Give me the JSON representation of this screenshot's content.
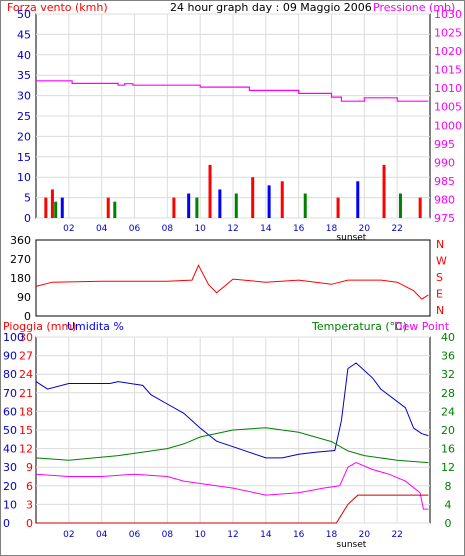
{
  "chart_data": [
    {
      "type": "bar+line",
      "title": "24 hour graph day : 09 Maggio 2006",
      "left_axis_label": "Forza vento (kmh)",
      "right_axis_label": "Pressione (mb)",
      "left_ticks": [
        0,
        5,
        10,
        15,
        20,
        25,
        30,
        35,
        40,
        45,
        50
      ],
      "right_ticks": [
        975,
        980,
        985,
        990,
        995,
        1000,
        1005,
        1010,
        1015,
        1020,
        1025,
        1030
      ],
      "x_ticks": [
        "02",
        "04",
        "06",
        "08",
        "10",
        "12",
        "14",
        "16",
        "18",
        "20",
        "22"
      ],
      "x_annotation": "sunset",
      "pressure": [
        [
          0,
          1012
        ],
        [
          2.2,
          1011.3
        ],
        [
          5,
          1010.8
        ],
        [
          5.4,
          1011.2
        ],
        [
          5.9,
          1010.8
        ],
        [
          10,
          1010.3
        ],
        [
          13,
          1009.4
        ],
        [
          16,
          1008.6
        ],
        [
          18,
          1007.6
        ],
        [
          18.6,
          1006.5
        ],
        [
          20,
          1007.4
        ],
        [
          22,
          1006.5
        ],
        [
          23.9,
          1006.5
        ]
      ],
      "wind_bars": [
        {
          "color": "#ff0000",
          "x": 0.6,
          "h": 5
        },
        {
          "color": "#ff0000",
          "x": 1.0,
          "h": 7
        },
        {
          "color": "#008000",
          "x": 1.2,
          "h": 4
        },
        {
          "color": "#0000ff",
          "x": 1.6,
          "h": 5
        },
        {
          "color": "#ff0000",
          "x": 4.4,
          "h": 5
        },
        {
          "color": "#008000",
          "x": 4.8,
          "h": 4
        },
        {
          "color": "#ff0000",
          "x": 8.4,
          "h": 5
        },
        {
          "color": "#0000ff",
          "x": 9.3,
          "h": 6
        },
        {
          "color": "#008000",
          "x": 9.8,
          "h": 5
        },
        {
          "color": "#ff0000",
          "x": 10.6,
          "h": 13
        },
        {
          "color": "#0000ff",
          "x": 11.2,
          "h": 7
        },
        {
          "color": "#008000",
          "x": 12.2,
          "h": 6
        },
        {
          "color": "#ff0000",
          "x": 13.2,
          "h": 10
        },
        {
          "color": "#0000ff",
          "x": 14.2,
          "h": 8
        },
        {
          "color": "#ff0000",
          "x": 15.0,
          "h": 9
        },
        {
          "color": "#008000",
          "x": 16.4,
          "h": 6
        },
        {
          "color": "#ff0000",
          "x": 18.4,
          "h": 5
        },
        {
          "color": "#0000ff",
          "x": 19.6,
          "h": 9
        },
        {
          "color": "#ff0000",
          "x": 21.2,
          "h": 13
        },
        {
          "color": "#008000",
          "x": 22.2,
          "h": 6
        },
        {
          "color": "#ff0000",
          "x": 23.4,
          "h": 5
        }
      ]
    },
    {
      "type": "line",
      "left_ticks": [
        0,
        90,
        180,
        270,
        360
      ],
      "right_labels": [
        "N",
        "W",
        "S",
        "E",
        "N"
      ],
      "wind_direction": [
        [
          0,
          140
        ],
        [
          1,
          160
        ],
        [
          4,
          165
        ],
        [
          8,
          165
        ],
        [
          9.5,
          170
        ],
        [
          9.9,
          240
        ],
        [
          10.5,
          150
        ],
        [
          11,
          110
        ],
        [
          12,
          175
        ],
        [
          14,
          160
        ],
        [
          16,
          170
        ],
        [
          18,
          150
        ],
        [
          19,
          170
        ],
        [
          21,
          170
        ],
        [
          22,
          160
        ],
        [
          23,
          120
        ],
        [
          23.5,
          80
        ],
        [
          23.9,
          100
        ]
      ]
    },
    {
      "type": "line",
      "left_axis_label_1": "Pioggia (mm)",
      "left_axis_label_2": "Umidita %",
      "right_axis_label_1": "Temperatura (°C)",
      "right_axis_label_2": "Dew Point",
      "rain_ticks": [
        0,
        3,
        6,
        9,
        12,
        15,
        18,
        21,
        24,
        27,
        30
      ],
      "humidity_ticks": [
        0,
        10,
        20,
        30,
        40,
        50,
        60,
        70,
        80,
        90,
        100
      ],
      "temp_ticks": [
        0,
        4,
        8,
        12,
        16,
        20,
        24,
        28,
        32,
        36,
        40
      ],
      "x_ticks": [
        "02",
        "04",
        "06",
        "08",
        "10",
        "12",
        "14",
        "16",
        "18",
        "20",
        "22"
      ],
      "x_annotation": "sunset",
      "humidity": [
        [
          0,
          76
        ],
        [
          0.7,
          72
        ],
        [
          2,
          75
        ],
        [
          4.5,
          75
        ],
        [
          5,
          76
        ],
        [
          6.5,
          74
        ],
        [
          7,
          69
        ],
        [
          8,
          64
        ],
        [
          9,
          59
        ],
        [
          10,
          51
        ],
        [
          11,
          44
        ],
        [
          12,
          41
        ],
        [
          13,
          38
        ],
        [
          14,
          35
        ],
        [
          15,
          35
        ],
        [
          16,
          37
        ],
        [
          17,
          38
        ],
        [
          18.2,
          39
        ],
        [
          18.6,
          55
        ],
        [
          19,
          83
        ],
        [
          19.5,
          86
        ],
        [
          20.5,
          78
        ],
        [
          21,
          72
        ],
        [
          22.5,
          62
        ],
        [
          23,
          51
        ],
        [
          23.5,
          48
        ],
        [
          23.9,
          47
        ]
      ],
      "temperature": [
        [
          0,
          14
        ],
        [
          2,
          13.5
        ],
        [
          5,
          14.5
        ],
        [
          8,
          16
        ],
        [
          9,
          17
        ],
        [
          10,
          18.5
        ],
        [
          12,
          20
        ],
        [
          14,
          20.5
        ],
        [
          16,
          19.5
        ],
        [
          18,
          17.5
        ],
        [
          19,
          15.5
        ],
        [
          20,
          14.5
        ],
        [
          22,
          13.5
        ],
        [
          23.9,
          13
        ]
      ],
      "dew_point": [
        [
          0,
          10.5
        ],
        [
          2,
          10
        ],
        [
          4,
          10
        ],
        [
          6,
          10.5
        ],
        [
          8,
          10
        ],
        [
          9,
          9
        ],
        [
          10,
          8.5
        ],
        [
          12,
          7.5
        ],
        [
          14,
          6
        ],
        [
          16,
          6.5
        ],
        [
          17.5,
          7.5
        ],
        [
          18.5,
          8
        ],
        [
          19,
          12
        ],
        [
          19.5,
          13
        ],
        [
          20.5,
          11.5
        ],
        [
          21.5,
          10.5
        ],
        [
          22.5,
          9
        ],
        [
          23.4,
          6.5
        ],
        [
          23.6,
          3
        ],
        [
          23.9,
          3
        ]
      ],
      "rain": [
        [
          0,
          0
        ],
        [
          18.3,
          0
        ],
        [
          19,
          3
        ],
        [
          19.6,
          4.5
        ],
        [
          23.9,
          4.5
        ]
      ]
    }
  ]
}
